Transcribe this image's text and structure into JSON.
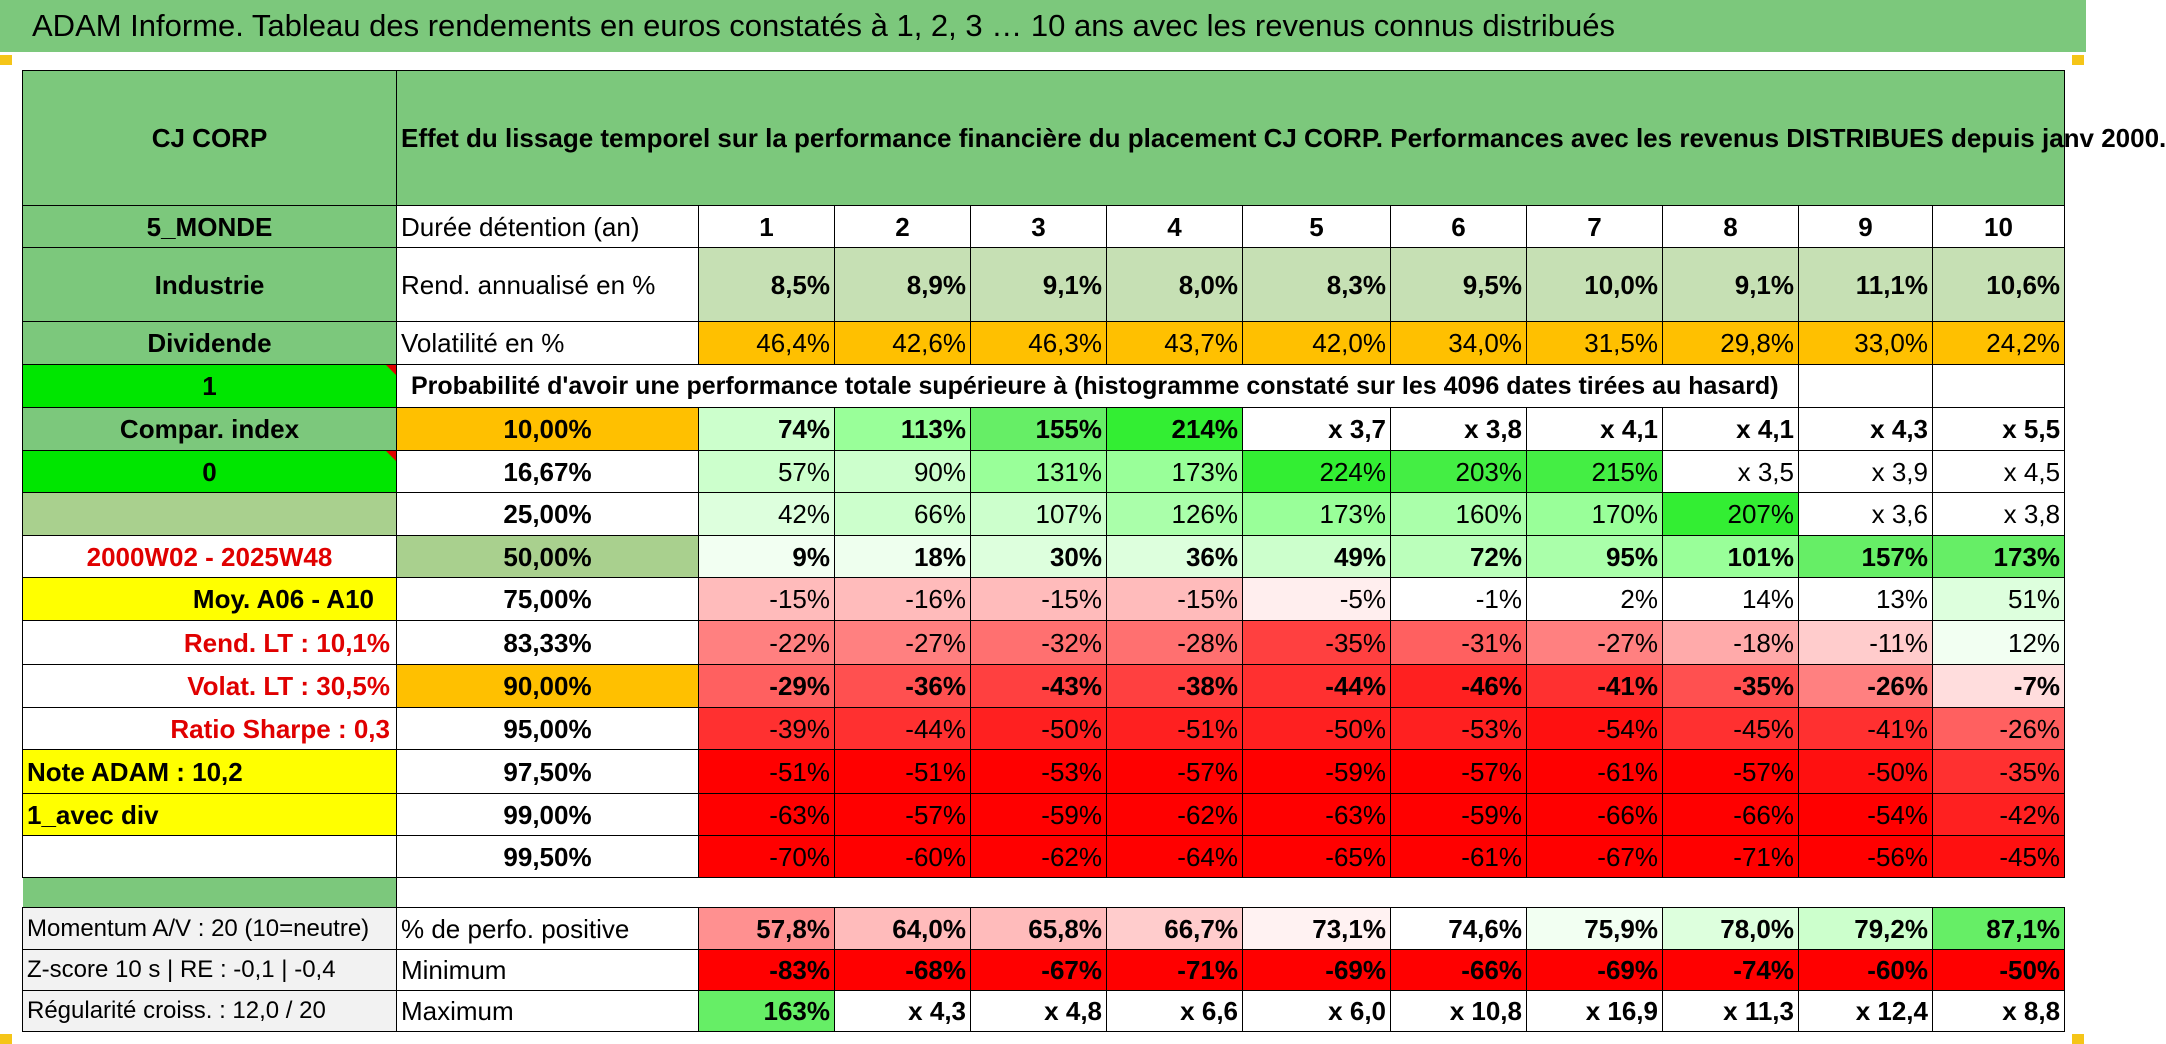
{
  "title": "ADAM Informe. Tableau des rendements en euros constatés à 1, 2, 3 … 10 ans avec les revenus connus distribués",
  "header": {
    "name": "CJ CORP",
    "description": "Effet du lissage temporel sur la performance financière du placement CJ CORP. Performances avec les revenus DISTRIBUES depuis janv 2000."
  },
  "side": {
    "zone": "5_MONDE",
    "sector": "Industrie",
    "type": "Dividende",
    "flag1": "1",
    "compar": "Compar. index",
    "flag0": "0",
    "period": "2000W02 - 2025W48",
    "moy": "Moy. A06 - A10",
    "rend_lt": "Rend. LT :   10,1%",
    "volat_lt": "Volat. LT :   30,5%",
    "sharpe": "Ratio Sharpe :    0,3",
    "note": "Note ADAM : 10,2",
    "mode": "1_avec div"
  },
  "rows": {
    "duree_label": "Durée détention (an)",
    "years": [
      "1",
      "2",
      "3",
      "4",
      "5",
      "6",
      "7",
      "8",
      "9",
      "10"
    ],
    "rend_label": "Rend. annualisé en %",
    "rend": [
      "8,5%",
      "8,9%",
      "9,1%",
      "8,0%",
      "8,3%",
      "9,5%",
      "10,0%",
      "9,1%",
      "11,1%",
      "10,6%"
    ],
    "vol_label": "Volatilité en %",
    "vol": [
      "46,4%",
      "42,6%",
      "46,3%",
      "43,7%",
      "42,0%",
      "34,0%",
      "31,5%",
      "29,8%",
      "33,0%",
      "24,2%"
    ],
    "prob_label": "Probabilité d'avoir une performance totale supérieure à (histogramme constaté sur les 4096 dates tirées au hasard)"
  },
  "percentiles": [
    {
      "p": "10,00%",
      "v": [
        "74%",
        "113%",
        "155%",
        "214%",
        "x 3,7",
        "x 3,8",
        "x 4,1",
        "x 4,1",
        "x 4,3",
        "x 5,5"
      ]
    },
    {
      "p": "16,67%",
      "v": [
        "57%",
        "90%",
        "131%",
        "173%",
        "224%",
        "203%",
        "215%",
        "x 3,5",
        "x 3,9",
        "x 4,5"
      ]
    },
    {
      "p": "25,00%",
      "v": [
        "42%",
        "66%",
        "107%",
        "126%",
        "173%",
        "160%",
        "170%",
        "207%",
        "x 3,6",
        "x 3,8"
      ]
    },
    {
      "p": "50,00%",
      "v": [
        "9%",
        "18%",
        "30%",
        "36%",
        "49%",
        "72%",
        "95%",
        "101%",
        "157%",
        "173%"
      ]
    },
    {
      "p": "75,00%",
      "v": [
        "-15%",
        "-16%",
        "-15%",
        "-15%",
        "-5%",
        "-1%",
        "2%",
        "14%",
        "13%",
        "51%"
      ]
    },
    {
      "p": "83,33%",
      "v": [
        "-22%",
        "-27%",
        "-32%",
        "-28%",
        "-35%",
        "-31%",
        "-27%",
        "-18%",
        "-11%",
        "12%"
      ]
    },
    {
      "p": "90,00%",
      "v": [
        "-29%",
        "-36%",
        "-43%",
        "-38%",
        "-44%",
        "-46%",
        "-41%",
        "-35%",
        "-26%",
        "-7%"
      ]
    },
    {
      "p": "95,00%",
      "v": [
        "-39%",
        "-44%",
        "-50%",
        "-51%",
        "-50%",
        "-53%",
        "-54%",
        "-45%",
        "-41%",
        "-26%"
      ]
    },
    {
      "p": "97,50%",
      "v": [
        "-51%",
        "-51%",
        "-53%",
        "-57%",
        "-59%",
        "-57%",
        "-61%",
        "-57%",
        "-50%",
        "-35%"
      ]
    },
    {
      "p": "99,00%",
      "v": [
        "-63%",
        "-57%",
        "-59%",
        "-62%",
        "-63%",
        "-59%",
        "-66%",
        "-66%",
        "-54%",
        "-42%"
      ]
    },
    {
      "p": "99,50%",
      "v": [
        "-70%",
        "-60%",
        "-62%",
        "-64%",
        "-65%",
        "-61%",
        "-67%",
        "-71%",
        "-56%",
        "-45%"
      ]
    }
  ],
  "footer": [
    {
      "left": "Momentum A/V : 20 (10=neutre)",
      "label": "% de perfo. positive",
      "v": [
        "57,8%",
        "64,0%",
        "65,8%",
        "66,7%",
        "73,1%",
        "74,6%",
        "75,9%",
        "78,0%",
        "79,2%",
        "87,1%"
      ]
    },
    {
      "left": "Z-score 10 s | RE : -0,1 | -0,4",
      "label": "Minimum",
      "v": [
        "-83%",
        "-68%",
        "-67%",
        "-71%",
        "-69%",
        "-66%",
        "-69%",
        "-74%",
        "-60%",
        "-50%"
      ]
    },
    {
      "left": "Régularité croiss. : 12,0 / 20",
      "label": "Maximum",
      "v": [
        "163%",
        "x 4,3",
        "x 4,8",
        "x 6,6",
        "x 6,0",
        "x 10,8",
        "x 16,9",
        "x 11,3",
        "x 12,4",
        "x 8,8"
      ]
    }
  ],
  "colors": {
    "header_green": "#7cc87c",
    "light_green": "#c6e0b4",
    "orange": "#ffc000",
    "yellow": "#ffff00",
    "bright_green": "#00e600",
    "label_red": "#e00000"
  },
  "cell_colors": {
    "percentiles": [
      [
        "#ccffcc",
        "#99ff99",
        "#66ee66",
        "#33ee33",
        "#ffffff",
        "#ffffff",
        "#ffffff",
        "#ffffff",
        "#ffffff",
        "#ffffff"
      ],
      [
        "#ccffcc",
        "#ccffcc",
        "#99ff99",
        "#99ff99",
        "#33ee33",
        "#44ee44",
        "#44ee44",
        "#ffffff",
        "#ffffff",
        "#ffffff"
      ],
      [
        "#ddffdd",
        "#ccffcc",
        "#ccffcc",
        "#aaffaa",
        "#99ff99",
        "#aaffaa",
        "#99ff99",
        "#33ee33",
        "#ffffff",
        "#ffffff"
      ],
      [
        "#f2fff2",
        "#eeffee",
        "#ddffdd",
        "#ddffdd",
        "#ccffcc",
        "#bbffbb",
        "#aaffaa",
        "#99ff99",
        "#66ee66",
        "#66ee66"
      ],
      [
        "#ffbbbb",
        "#ffbbbb",
        "#ffbbbb",
        "#ffbbbb",
        "#ffeeee",
        "#ffffff",
        "#ffffff",
        "#ffffff",
        "#ffffff",
        "#ddffdd"
      ],
      [
        "#ff8080",
        "#ff8080",
        "#ff7070",
        "#ff7070",
        "#ff4040",
        "#ff6060",
        "#ff8080",
        "#ffaaaa",
        "#ffcccc",
        "#f2fff2"
      ],
      [
        "#ff6060",
        "#ff5050",
        "#ff4040",
        "#ff4040",
        "#ff3030",
        "#ff2020",
        "#ff3030",
        "#ff5050",
        "#ff8080",
        "#ffdddd"
      ],
      [
        "#ff3030",
        "#ff3030",
        "#ff2020",
        "#ff2020",
        "#ff2020",
        "#ff2020",
        "#ff1010",
        "#ff3030",
        "#ff3030",
        "#ff6060"
      ],
      [
        "#ff0000",
        "#ff0000",
        "#ff0000",
        "#ff0000",
        "#ff0000",
        "#ff0000",
        "#ff0000",
        "#ff0000",
        "#ff1010",
        "#ff3030"
      ],
      [
        "#ff0000",
        "#ff0000",
        "#ff0000",
        "#ff0000",
        "#ff0000",
        "#ff0000",
        "#ff0000",
        "#ff0000",
        "#ff0000",
        "#ff2020"
      ],
      [
        "#ff0000",
        "#ff0000",
        "#ff0000",
        "#ff0000",
        "#ff0000",
        "#ff0000",
        "#ff0000",
        "#ff0000",
        "#ff0000",
        "#ff1010"
      ]
    ],
    "footer": [
      [
        "#ff9090",
        "#ffbbbb",
        "#ffbbbb",
        "#ffcccc",
        "#fff2f2",
        "#ffffff",
        "#f2fff2",
        "#ddffdd",
        "#ccffcc",
        "#66ee66"
      ],
      [
        "#ff0000",
        "#ff0000",
        "#ff0000",
        "#ff0000",
        "#ff0000",
        "#ff0000",
        "#ff0000",
        "#ff0000",
        "#ff0000",
        "#ff0000"
      ],
      [
        "#66ee66",
        "#ffffff",
        "#ffffff",
        "#ffffff",
        "#ffffff",
        "#ffffff",
        "#ffffff",
        "#ffffff",
        "#ffffff",
        "#ffffff"
      ]
    ]
  }
}
